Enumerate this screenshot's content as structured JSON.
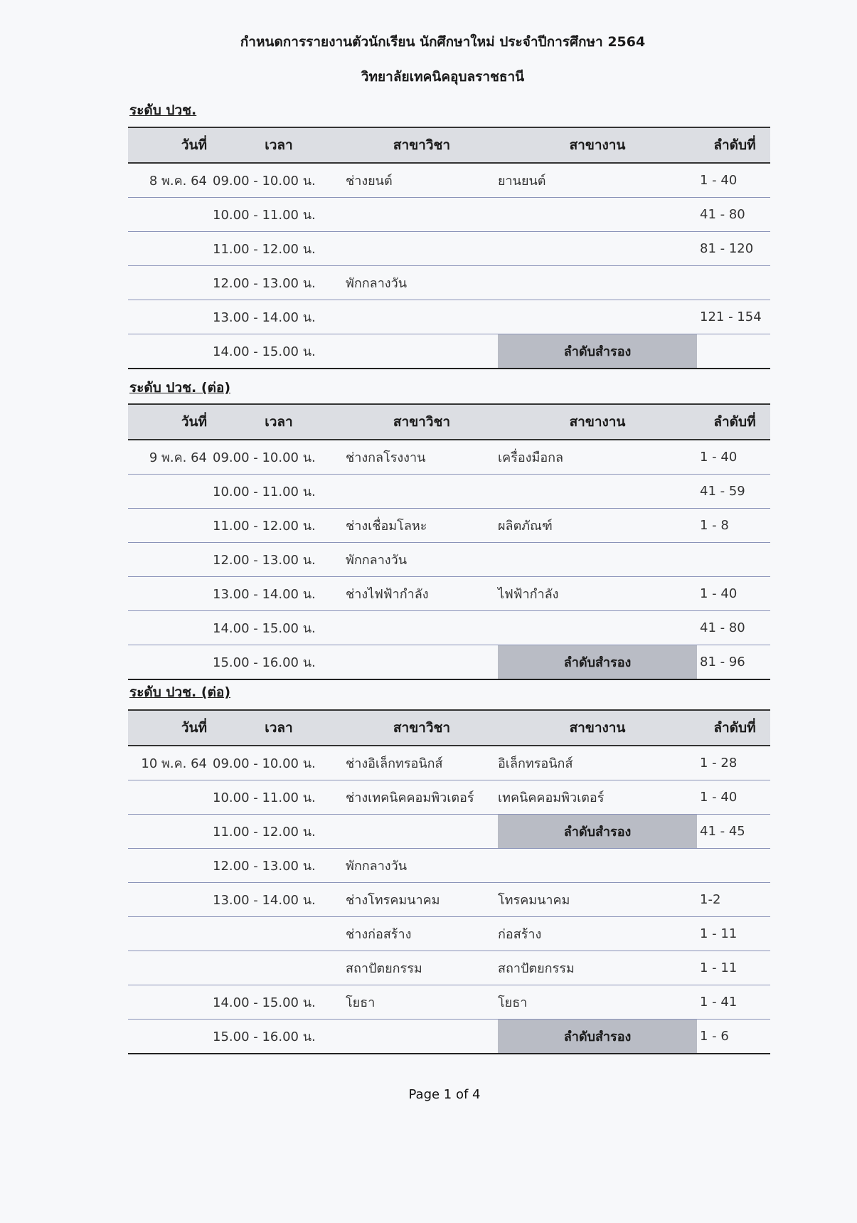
{
  "title": "กำหนดการรายงานตัวนักเรียน นักศึกษาใหม่ ประจำปีการศึกษา 2564",
  "subtitle": "วิทยาลัยเทคนิคอุบลราชธานี",
  "columns": [
    "วันที่",
    "เวลา",
    "สาขาวิชา",
    "สาขางาน",
    "ลำดับที่"
  ],
  "reserve_label": "ลำดับสำรอง",
  "sections": [
    {
      "heading": "ระดับ ปวช.",
      "rows": [
        {
          "date": "8 พ.ค. 64",
          "time": "09.00 - 10.00 น.",
          "major": "ช่างยนต์",
          "branch": "ยานยนต์",
          "order": "1 - 40"
        },
        {
          "date": "",
          "time": "10.00 - 11.00 น.",
          "major": "",
          "branch": "",
          "order": "41 - 80"
        },
        {
          "date": "",
          "time": "11.00 - 12.00 น.",
          "major": "",
          "branch": "",
          "order": "81 - 120"
        },
        {
          "date": "",
          "time": "12.00 - 13.00 น.",
          "major": "พักกลางวัน",
          "branch": "",
          "order": ""
        },
        {
          "date": "",
          "time": "13.00 - 14.00 น.",
          "major": "",
          "branch": "",
          "order": "121 - 154"
        },
        {
          "date": "",
          "time": "14.00 - 15.00 น.",
          "major": "",
          "reserve": true,
          "order": ""
        }
      ]
    },
    {
      "heading": "ระดับ ปวช. (ต่อ)",
      "rows": [
        {
          "date": "9 พ.ค. 64",
          "time": "09.00 - 10.00 น.",
          "major": "ช่างกลโรงงาน",
          "branch": "เครื่องมือกล",
          "order": "1 - 40"
        },
        {
          "date": "",
          "time": "10.00 - 11.00 น.",
          "major": "",
          "branch": "",
          "order": "41 - 59"
        },
        {
          "date": "",
          "time": "11.00 - 12.00 น.",
          "major": "ช่างเชื่อมโลหะ",
          "branch": "ผลิตภัณฑ์",
          "order": "1 - 8"
        },
        {
          "date": "",
          "time": "12.00 - 13.00 น.",
          "major": "พักกลางวัน",
          "branch": "",
          "order": ""
        },
        {
          "date": "",
          "time": "13.00 - 14.00 น.",
          "major": "ช่างไฟฟ้ากำลัง",
          "branch": "ไฟฟ้ากำลัง",
          "order": "1 - 40"
        },
        {
          "date": "",
          "time": "14.00 - 15.00 น.",
          "major": "",
          "branch": "",
          "order": "41 - 80"
        },
        {
          "date": "",
          "time": "15.00 - 16.00 น.",
          "major": "",
          "reserve": true,
          "order": "81 - 96"
        }
      ]
    },
    {
      "heading": "ระดับ ปวช. (ต่อ)",
      "rows": [
        {
          "date": "10 พ.ค. 64",
          "time": "09.00 - 10.00 น.",
          "major": "ช่างอิเล็กทรอนิกส์",
          "branch": "อิเล็กทรอนิกส์",
          "order": "1 - 28"
        },
        {
          "date": "",
          "time": "10.00 - 11.00 น.",
          "major": "ช่างเทคนิคคอมพิวเตอร์",
          "branch": "เทคนิคคอมพิวเตอร์",
          "order": "1 - 40"
        },
        {
          "date": "",
          "time": "11.00 - 12.00 น.",
          "major": "",
          "reserve": true,
          "order": "41 - 45"
        },
        {
          "date": "",
          "time": "12.00 - 13.00 น.",
          "major": "พักกลางวัน",
          "branch": "",
          "order": ""
        },
        {
          "date": "",
          "time": "13.00 - 14.00 น.",
          "major": "ช่างโทรคมนาคม",
          "branch": "โทรคมนาคม",
          "order": "1-2"
        },
        {
          "date": "",
          "time": "",
          "major": "ช่างก่อสร้าง",
          "branch": "ก่อสร้าง",
          "order": "1 - 11"
        },
        {
          "date": "",
          "time": "",
          "major": "สถาปัตยกรรม",
          "branch": "สถาปัตยกรรม",
          "order": "1 - 11"
        },
        {
          "date": "",
          "time": "14.00 - 15.00 น.",
          "major": "โยธา",
          "branch": "โยธา",
          "order": "1 - 41"
        },
        {
          "date": "",
          "time": "15.00 - 16.00 น.",
          "major": "",
          "reserve": true,
          "order": "1 - 6"
        }
      ]
    }
  ],
  "footer": "Page 1 of 4"
}
